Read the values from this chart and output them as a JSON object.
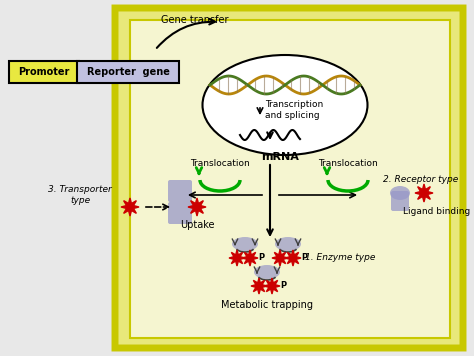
{
  "bg_color": "#e8e8e8",
  "cell_outer_color": "#e8e87a",
  "cell_inner_color": "#f5f5d0",
  "cell_border_color": "#c8c800",
  "nucleus_color": "#ffffff",
  "promoter_color": "#e8e840",
  "reporter_color": "#c0c0e0",
  "protein_color": "#9898c8",
  "transloc_arrow_color": "#00aa00",
  "red_star_color": "#cc0000",
  "gene_transfer_text": "Gene transfer",
  "promoter_text": "Promoter",
  "reporter_text": "Reporter  gene",
  "transcription_text": "Transcription\nand splicing",
  "mrna_text": "mRNA",
  "translocation_text": "Translocation",
  "transporter_text": "3. Transporter\ntype",
  "receptor_text": "2. Receptor type",
  "uptake_text": "Uptake",
  "ligand_text": "Ligand binding",
  "enzyme_text": "1. Enzyme type",
  "metabolic_text": "Metabolic trapping"
}
